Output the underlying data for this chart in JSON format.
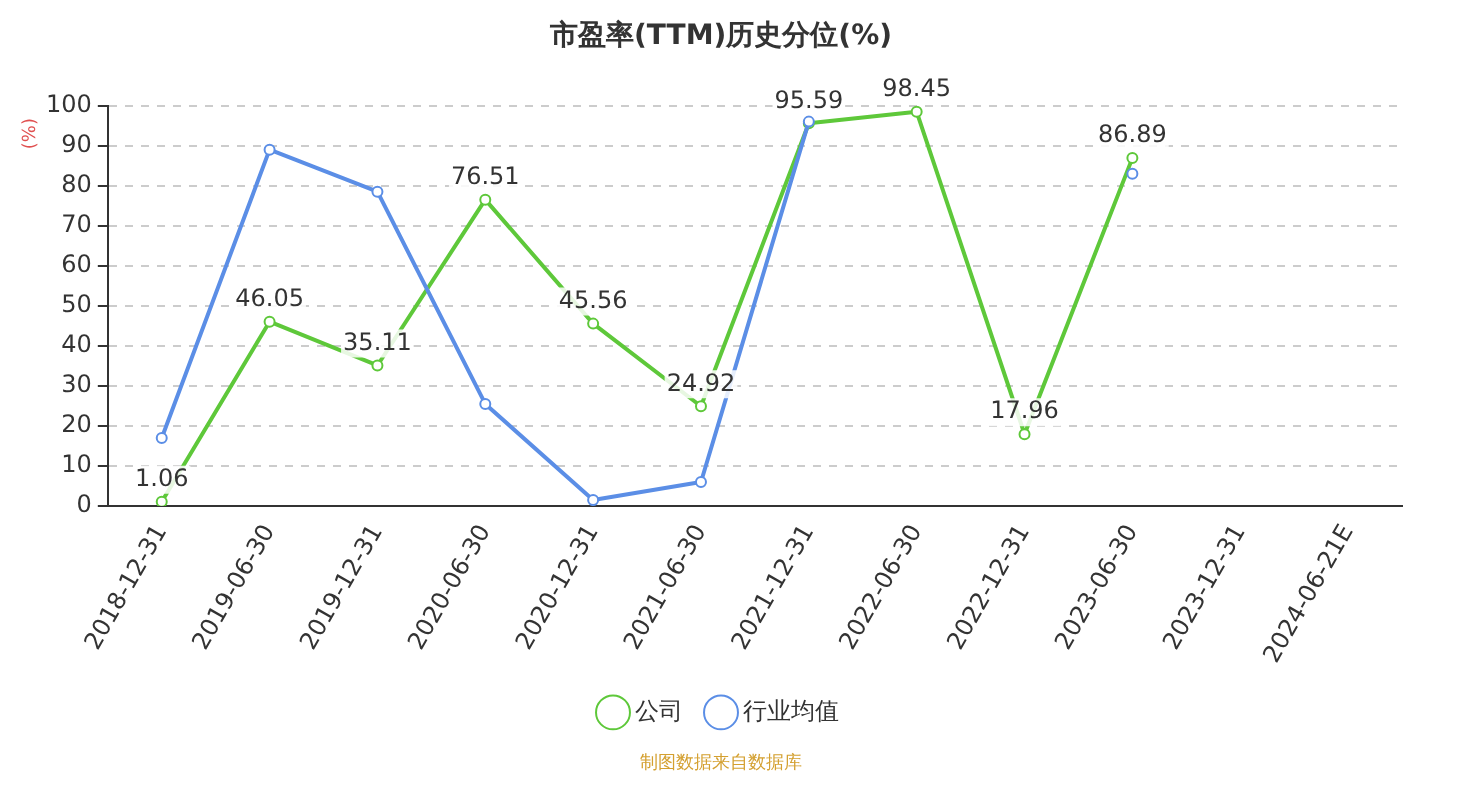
{
  "chart_data": {
    "type": "line",
    "title": "市盈率(TTM)历史分位(%)",
    "ylabel": "(%)",
    "categories": [
      "2018-12-31",
      "2019-06-30",
      "2019-12-31",
      "2020-06-30",
      "2020-12-31",
      "2021-06-30",
      "2021-12-31",
      "2022-06-30",
      "2022-12-31",
      "2023-06-30",
      "2023-12-31",
      "2024-06-21E"
    ],
    "series": [
      {
        "name": "公司",
        "color": "#5ec83a",
        "values": [
          1.06,
          46.05,
          35.11,
          76.51,
          45.56,
          24.92,
          95.59,
          98.45,
          17.96,
          86.89,
          null,
          null
        ],
        "value_labels": [
          "1.06",
          "46.05",
          "35.11",
          "76.51",
          "45.56",
          "24.92",
          "95.59",
          "98.45",
          "17.96",
          "86.89",
          null,
          null
        ]
      },
      {
        "name": "行业均值",
        "color": "#5b8ee6",
        "values": [
          17,
          89,
          78.5,
          25.5,
          1.5,
          6,
          96,
          null,
          null,
          83,
          null,
          null
        ]
      }
    ],
    "ylim": [
      0,
      100
    ],
    "yticks": [
      0,
      10,
      20,
      30,
      40,
      50,
      60,
      70,
      80,
      90,
      100
    ],
    "grid": "y",
    "line_style": "solid",
    "marker": "circle",
    "legend": "bottom",
    "annotations": [
      "制图数据来自数据库"
    ]
  }
}
